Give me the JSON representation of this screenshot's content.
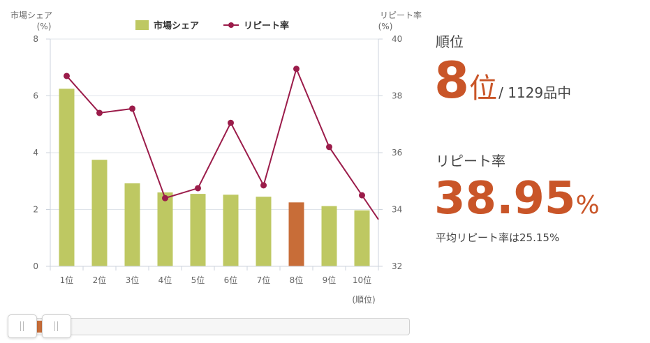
{
  "chart_data": {
    "type": "bar",
    "categories": [
      "1位",
      "2位",
      "3位",
      "4位",
      "5位",
      "6位",
      "7位",
      "8位",
      "9位",
      "10位"
    ],
    "series": [
      {
        "name": "市場シェア",
        "axis": "left",
        "type": "bar",
        "values": [
          6.25,
          3.75,
          2.92,
          2.6,
          2.55,
          2.52,
          2.45,
          2.25,
          2.12,
          1.97
        ],
        "color": "#bec862",
        "highlight_index": 7,
        "highlight_color": "#c86d38"
      },
      {
        "name": "リピート率",
        "axis": "right",
        "type": "line",
        "values": [
          38.7,
          37.4,
          37.55,
          34.4,
          34.75,
          37.05,
          34.85,
          38.95,
          36.2,
          34.5
        ],
        "continues_to": 32.8,
        "color": "#9b1c4a"
      }
    ],
    "y_left": {
      "label_line1": "市場シェア",
      "label_line2": "(%)",
      "ylim": [
        0,
        8
      ],
      "ticks": [
        "0",
        "2",
        "4",
        "6",
        "8"
      ]
    },
    "y_right": {
      "label_line1": "リピート率",
      "label_line2": "(%)",
      "ylim": [
        32,
        40
      ],
      "ticks": [
        "32",
        "34",
        "36",
        "38",
        "40"
      ]
    },
    "xlabel": "(順位)",
    "grid": "horizontal",
    "legend": "top-center"
  },
  "summary": {
    "rank_label": "順位",
    "rank_value": "8",
    "rank_unit": "位",
    "rank_total": "/ 1129品中",
    "repeat_label": "リピート率",
    "repeat_value": "38.95",
    "repeat_unit": "%",
    "average_text": "平均リピート率は25.15%"
  },
  "colors": {
    "accent": "#c95528",
    "bar": "#bec862",
    "bar_highlight": "#c86d38",
    "line": "#9b1c4a"
  }
}
